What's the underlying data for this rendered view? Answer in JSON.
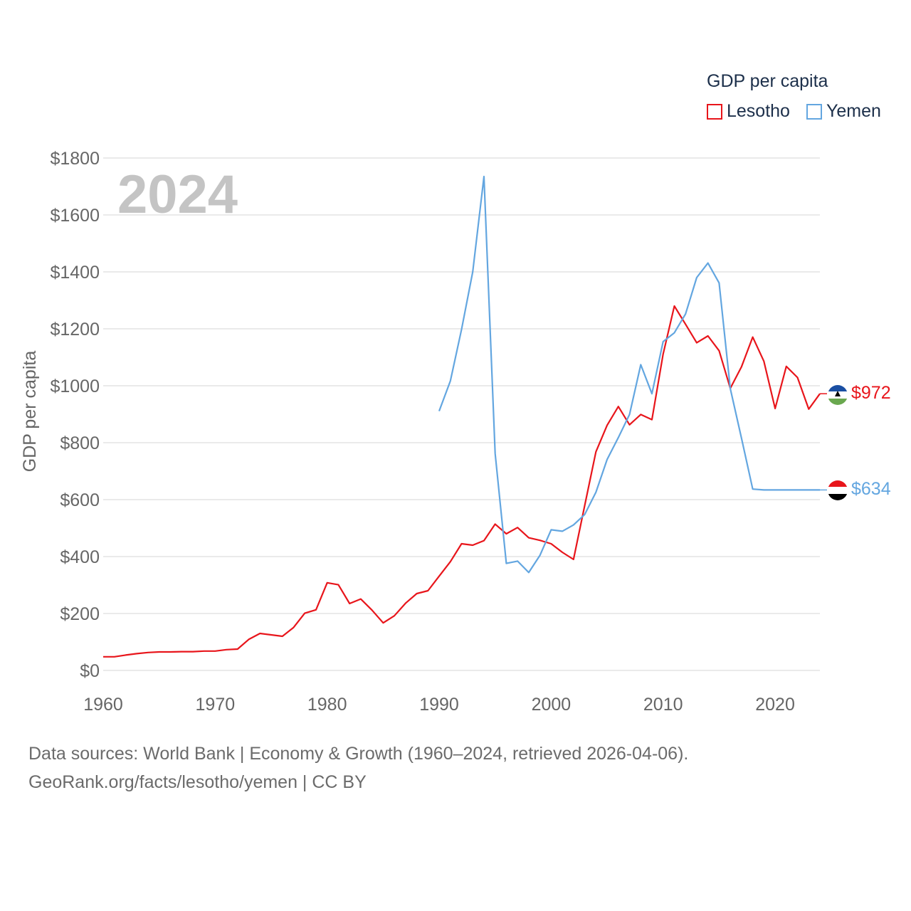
{
  "legend": {
    "title": "GDP per capita",
    "items": [
      {
        "name": "Lesotho",
        "color": "#e8151b"
      },
      {
        "name": "Yemen",
        "color": "#63a6e0"
      }
    ]
  },
  "source": {
    "line1": "Data sources: World Bank | Economy & Growth (1960–2024, retrieved 2026-04-06).",
    "line2": "GeoRank.org/facts/lesotho/yemen | CC BY"
  },
  "chart_data": {
    "type": "line",
    "title": "GDP per capita",
    "year_label": "2024",
    "xlabel": "",
    "ylabel": "GDP per capita",
    "xlim": [
      1960,
      2024
    ],
    "ylim": [
      0,
      1800
    ],
    "x_ticks": [
      1960,
      1970,
      1980,
      1990,
      2000,
      2010,
      2020
    ],
    "y_ticks": [
      0,
      200,
      400,
      600,
      800,
      1000,
      1200,
      1400,
      1600,
      1800
    ],
    "y_tick_labels": [
      "$0",
      "$200",
      "$400",
      "$600",
      "$800",
      "$1000",
      "$1200",
      "$1400",
      "$1600",
      "$1800"
    ],
    "grid": true,
    "legend_position": "top-right",
    "series": [
      {
        "name": "Lesotho",
        "color": "#e8151b",
        "end_label": "$972",
        "points": [
          [
            1960,
            48
          ],
          [
            1961,
            48
          ],
          [
            1962,
            54
          ],
          [
            1963,
            59
          ],
          [
            1964,
            63
          ],
          [
            1965,
            65
          ],
          [
            1966,
            65
          ],
          [
            1967,
            66
          ],
          [
            1968,
            66
          ],
          [
            1969,
            68
          ],
          [
            1970,
            68
          ],
          [
            1971,
            73
          ],
          [
            1972,
            75
          ],
          [
            1973,
            109
          ],
          [
            1974,
            130
          ],
          [
            1975,
            125
          ],
          [
            1976,
            120
          ],
          [
            1977,
            151
          ],
          [
            1978,
            201
          ],
          [
            1979,
            213
          ],
          [
            1980,
            308
          ],
          [
            1981,
            301
          ],
          [
            1982,
            235
          ],
          [
            1983,
            251
          ],
          [
            1984,
            212
          ],
          [
            1985,
            167
          ],
          [
            1986,
            192
          ],
          [
            1987,
            236
          ],
          [
            1988,
            270
          ],
          [
            1989,
            280
          ],
          [
            1990,
            331
          ],
          [
            1991,
            382
          ],
          [
            1992,
            445
          ],
          [
            1993,
            440
          ],
          [
            1994,
            456
          ],
          [
            1995,
            514
          ],
          [
            1996,
            480
          ],
          [
            1997,
            502
          ],
          [
            1998,
            466
          ],
          [
            1999,
            457
          ],
          [
            2000,
            445
          ],
          [
            2001,
            415
          ],
          [
            2002,
            390
          ],
          [
            2003,
            580
          ],
          [
            2004,
            768
          ],
          [
            2005,
            861
          ],
          [
            2006,
            927
          ],
          [
            2007,
            863
          ],
          [
            2008,
            899
          ],
          [
            2009,
            881
          ],
          [
            2010,
            1111
          ],
          [
            2011,
            1280
          ],
          [
            2012,
            1216
          ],
          [
            2013,
            1151
          ],
          [
            2014,
            1175
          ],
          [
            2015,
            1123
          ],
          [
            2016,
            991
          ],
          [
            2017,
            1067
          ],
          [
            2018,
            1171
          ],
          [
            2019,
            1086
          ],
          [
            2020,
            920
          ],
          [
            2021,
            1068
          ],
          [
            2022,
            1029
          ],
          [
            2023,
            918
          ],
          [
            2024,
            972
          ]
        ]
      },
      {
        "name": "Yemen",
        "color": "#63a6e0",
        "end_label": "$634",
        "points": [
          [
            1990,
            911
          ],
          [
            1991,
            1017
          ],
          [
            1992,
            1198
          ],
          [
            1993,
            1400
          ],
          [
            1994,
            1735
          ],
          [
            1995,
            762
          ],
          [
            1996,
            376
          ],
          [
            1997,
            384
          ],
          [
            1998,
            344
          ],
          [
            1999,
            404
          ],
          [
            2000,
            494
          ],
          [
            2001,
            489
          ],
          [
            2002,
            511
          ],
          [
            2003,
            548
          ],
          [
            2004,
            626
          ],
          [
            2005,
            741
          ],
          [
            2006,
            818
          ],
          [
            2007,
            899
          ],
          [
            2008,
            1074
          ],
          [
            2009,
            972
          ],
          [
            2010,
            1155
          ],
          [
            2011,
            1186
          ],
          [
            2012,
            1252
          ],
          [
            2013,
            1380
          ],
          [
            2014,
            1431
          ],
          [
            2015,
            1361
          ],
          [
            2016,
            990
          ],
          [
            2017,
            815
          ],
          [
            2018,
            637
          ],
          [
            2019,
            634
          ],
          [
            2020,
            634
          ],
          [
            2021,
            634
          ],
          [
            2022,
            634
          ],
          [
            2023,
            634
          ],
          [
            2024,
            634
          ]
        ]
      }
    ]
  }
}
